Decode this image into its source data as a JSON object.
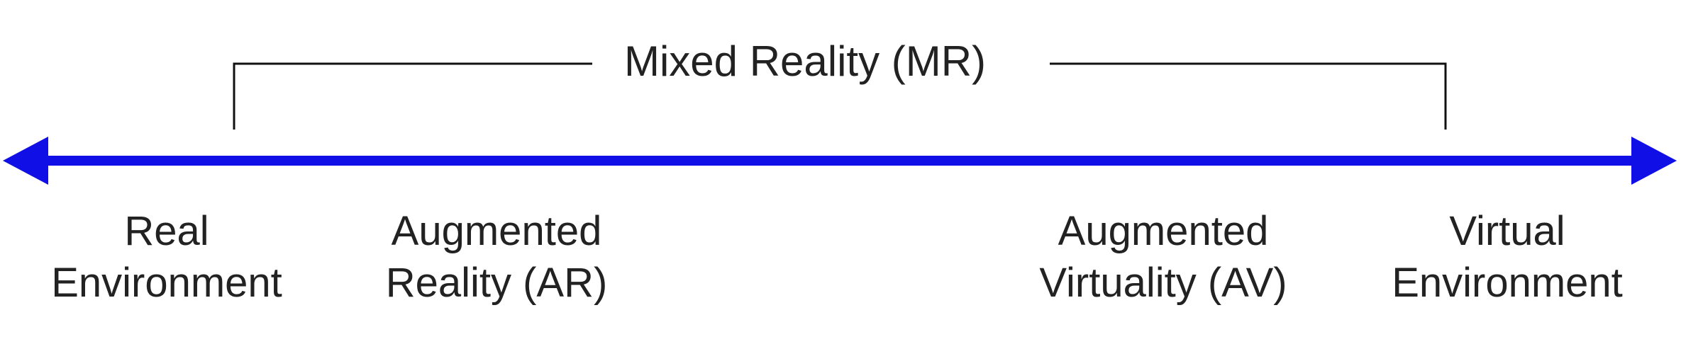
{
  "diagram": {
    "span_label": "Mixed Reality (MR)",
    "points": [
      {
        "id": "real",
        "line1": "Real",
        "line2": "Environment"
      },
      {
        "id": "ar",
        "line1": "Augmented",
        "line2": "Reality (AR)"
      },
      {
        "id": "av",
        "line1": "Augmented",
        "line2": "Virtuality (AV)"
      },
      {
        "id": "virtual",
        "line1": "Virtual",
        "line2": "Environment"
      }
    ],
    "colors": {
      "axis": "#1010e6",
      "bracket": "#111111",
      "text": "#222222"
    }
  }
}
